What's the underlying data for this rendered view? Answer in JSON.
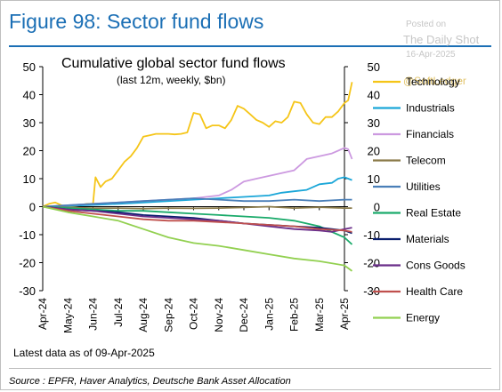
{
  "figure_title": "Figure 98: Sector fund flows",
  "watermark": {
    "posted": "Posted on",
    "site": "The Daily Shot",
    "date": "16-Apr-2025",
    "handle": "@SoftLedger"
  },
  "latest_note": "Latest data as of 09-Apr-2025",
  "source": "Source : EPFR, Haver Analytics, Deutsche Bank Asset Allocation",
  "chart_data": {
    "type": "line",
    "title": "Cumulative global sector fund flows",
    "subtitle": "(last 12m, weekly, $bn)",
    "ylim": [
      -30,
      50
    ],
    "yticks": [
      -30,
      -20,
      -10,
      0,
      10,
      20,
      30,
      40,
      50
    ],
    "x_tick_labels": [
      "Apr-24",
      "May-24",
      "Jun-24",
      "Jul-24",
      "Aug-24",
      "Sep-24",
      "Oct-24",
      "Nov-24",
      "Dec-24",
      "Jan-25",
      "Feb-25",
      "Mar-25",
      "Apr-25"
    ],
    "legend_position": "right",
    "grid": false,
    "series": [
      {
        "name": "Technology",
        "color": "#f5c518",
        "values": [
          [
            0,
            0
          ],
          [
            0.25,
            1
          ],
          [
            0.5,
            1.5
          ],
          [
            0.75,
            0.5
          ],
          [
            1,
            0
          ],
          [
            1.25,
            0.3
          ],
          [
            1.5,
            0.5
          ],
          [
            1.75,
            1
          ],
          [
            2,
            1
          ],
          [
            2.1,
            10.5
          ],
          [
            2.3,
            7
          ],
          [
            2.5,
            9
          ],
          [
            2.75,
            10
          ],
          [
            3,
            13
          ],
          [
            3.25,
            16
          ],
          [
            3.5,
            18
          ],
          [
            3.75,
            21
          ],
          [
            4,
            25
          ],
          [
            4.25,
            25.5
          ],
          [
            4.5,
            26
          ],
          [
            4.75,
            26
          ],
          [
            5,
            26
          ],
          [
            5.25,
            25.8
          ],
          [
            5.5,
            26
          ],
          [
            5.75,
            26.5
          ],
          [
            6,
            33.5
          ],
          [
            6.25,
            33
          ],
          [
            6.5,
            28
          ],
          [
            6.75,
            29
          ],
          [
            7,
            29
          ],
          [
            7.25,
            28
          ],
          [
            7.5,
            31
          ],
          [
            7.75,
            36
          ],
          [
            8,
            35
          ],
          [
            8.25,
            33
          ],
          [
            8.5,
            31
          ],
          [
            8.75,
            30
          ],
          [
            9,
            28.5
          ],
          [
            9.25,
            30.5
          ],
          [
            9.5,
            30
          ],
          [
            9.75,
            32
          ],
          [
            10,
            37.5
          ],
          [
            10.25,
            37
          ],
          [
            10.5,
            33
          ],
          [
            10.75,
            30
          ],
          [
            11,
            29.5
          ],
          [
            11.25,
            32
          ],
          [
            11.5,
            32
          ],
          [
            11.75,
            34
          ],
          [
            12,
            37
          ],
          [
            12.15,
            38
          ],
          [
            12.3,
            44.5
          ]
        ]
      },
      {
        "name": "Industrials",
        "color": "#1aa6d8",
        "values": [
          [
            0,
            0
          ],
          [
            1,
            0.3
          ],
          [
            2,
            0.6
          ],
          [
            3,
            1
          ],
          [
            4,
            1.5
          ],
          [
            5,
            2
          ],
          [
            6,
            2.5
          ],
          [
            7,
            3
          ],
          [
            8,
            3.5
          ],
          [
            9,
            4
          ],
          [
            9.5,
            5
          ],
          [
            10,
            5.5
          ],
          [
            10.5,
            6
          ],
          [
            11,
            8
          ],
          [
            11.5,
            8.5
          ],
          [
            11.75,
            10
          ],
          [
            12,
            10.5
          ],
          [
            12.3,
            9.5
          ]
        ]
      },
      {
        "name": "Financials",
        "color": "#cc99e0",
        "values": [
          [
            0,
            0
          ],
          [
            1,
            0.5
          ],
          [
            2,
            1
          ],
          [
            3,
            1.5
          ],
          [
            4,
            2
          ],
          [
            5,
            2.5
          ],
          [
            6,
            3
          ],
          [
            6.5,
            3.5
          ],
          [
            7,
            4
          ],
          [
            7.5,
            6
          ],
          [
            8,
            9
          ],
          [
            8.5,
            10
          ],
          [
            9,
            11
          ],
          [
            9.5,
            12
          ],
          [
            10,
            13
          ],
          [
            10.25,
            15
          ],
          [
            10.5,
            17
          ],
          [
            11,
            18
          ],
          [
            11.5,
            19
          ],
          [
            12,
            21
          ],
          [
            12.15,
            20.5
          ],
          [
            12.3,
            17
          ]
        ]
      },
      {
        "name": "Telecom",
        "color": "#8b7b4a",
        "values": [
          [
            0,
            0
          ],
          [
            1,
            -0.3
          ],
          [
            2,
            -0.5
          ],
          [
            3,
            -0.5
          ],
          [
            4,
            -0.7
          ],
          [
            5,
            -0.5
          ],
          [
            6,
            -0.6
          ],
          [
            7,
            -0.5
          ],
          [
            8,
            -0.3
          ],
          [
            9,
            0
          ],
          [
            10,
            -0.5
          ],
          [
            11,
            -0.2
          ],
          [
            12,
            -0.5
          ],
          [
            12.3,
            -0.5
          ]
        ]
      },
      {
        "name": "Utilities",
        "color": "#4a7fb8",
        "values": [
          [
            0,
            0
          ],
          [
            1,
            0.5
          ],
          [
            2,
            1
          ],
          [
            3,
            1.5
          ],
          [
            4,
            2
          ],
          [
            5,
            2.5
          ],
          [
            6,
            3
          ],
          [
            7,
            2.5
          ],
          [
            8,
            2
          ],
          [
            9,
            2
          ],
          [
            10,
            2.5
          ],
          [
            11,
            2
          ],
          [
            12,
            2.5
          ],
          [
            12.3,
            2.5
          ]
        ]
      },
      {
        "name": "Real Estate",
        "color": "#1aaa6a",
        "values": [
          [
            0,
            0
          ],
          [
            1,
            -0.5
          ],
          [
            2,
            -1
          ],
          [
            3,
            -1.5
          ],
          [
            4,
            -1.5
          ],
          [
            5,
            -2
          ],
          [
            6,
            -2.5
          ],
          [
            7,
            -3
          ],
          [
            8,
            -3.5
          ],
          [
            9,
            -4
          ],
          [
            10,
            -5
          ],
          [
            11,
            -7
          ],
          [
            11.5,
            -9
          ],
          [
            12,
            -11
          ],
          [
            12.3,
            -13.5
          ]
        ]
      },
      {
        "name": "Materials",
        "color": "#0a1e6e",
        "values": [
          [
            0,
            0
          ],
          [
            1,
            -1
          ],
          [
            2,
            -1.5
          ],
          [
            3,
            -2
          ],
          [
            4,
            -3
          ],
          [
            5,
            -3.5
          ],
          [
            6,
            -4
          ],
          [
            7,
            -5
          ],
          [
            8,
            -6
          ],
          [
            9,
            -6.5
          ],
          [
            10,
            -7
          ],
          [
            11,
            -7.5
          ],
          [
            11.5,
            -8
          ],
          [
            12,
            -8.5
          ],
          [
            12.3,
            -9.5
          ]
        ]
      },
      {
        "name": "Cons Goods",
        "color": "#6a2e8a",
        "values": [
          [
            0,
            0
          ],
          [
            1,
            -1
          ],
          [
            2,
            -1.5
          ],
          [
            3,
            -2.5
          ],
          [
            4,
            -3.5
          ],
          [
            5,
            -4
          ],
          [
            6,
            -4.5
          ],
          [
            7,
            -5
          ],
          [
            8,
            -6
          ],
          [
            9,
            -7
          ],
          [
            10,
            -8
          ],
          [
            11,
            -8.5
          ],
          [
            11.5,
            -9
          ],
          [
            12,
            -8
          ],
          [
            12.3,
            -7.5
          ]
        ]
      },
      {
        "name": "Health Care",
        "color": "#c0504d",
        "values": [
          [
            0,
            0
          ],
          [
            1,
            -1.5
          ],
          [
            2,
            -2.5
          ],
          [
            3,
            -3.5
          ],
          [
            4,
            -4.5
          ],
          [
            5,
            -5
          ],
          [
            6,
            -5
          ],
          [
            7,
            -5.5
          ],
          [
            8,
            -6
          ],
          [
            9,
            -6.5
          ],
          [
            10,
            -7
          ],
          [
            11,
            -8
          ],
          [
            12,
            -8.5
          ],
          [
            12.3,
            -9
          ]
        ]
      },
      {
        "name": "Energy",
        "color": "#92d050",
        "values": [
          [
            0,
            0
          ],
          [
            1,
            -2
          ],
          [
            2,
            -3.5
          ],
          [
            3,
            -5
          ],
          [
            4,
            -8
          ],
          [
            5,
            -11
          ],
          [
            6,
            -13
          ],
          [
            7,
            -14
          ],
          [
            8,
            -15.5
          ],
          [
            9,
            -17
          ],
          [
            10,
            -18.5
          ],
          [
            11,
            -19.5
          ],
          [
            12,
            -21
          ],
          [
            12.3,
            -23
          ]
        ]
      }
    ]
  }
}
